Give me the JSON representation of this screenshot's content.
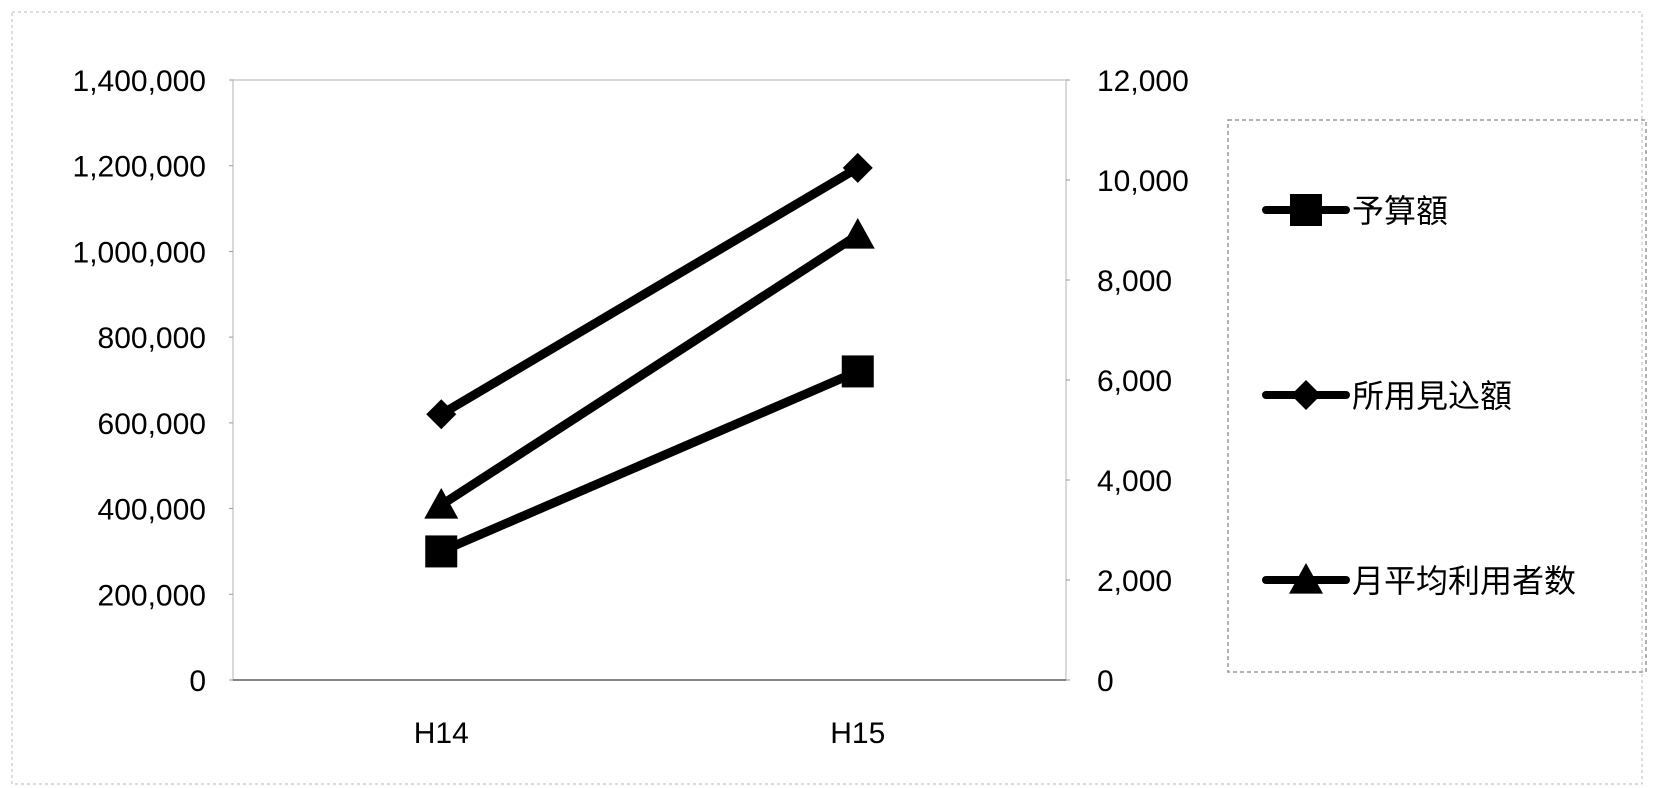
{
  "chart_data": {
    "type": "line",
    "categories": [
      "H14",
      "H15"
    ],
    "y_left": {
      "min": 0,
      "max": 1400000,
      "step": 200000,
      "tick_labels": [
        "0",
        "200,000",
        "400,000",
        "600,000",
        "800,000",
        "1,000,000",
        "1,200,000",
        "1,400,000"
      ]
    },
    "y_right": {
      "min": 0,
      "max": 12000,
      "step": 2000,
      "tick_labels": [
        "0",
        "2,000",
        "4,000",
        "6,000",
        "8,000",
        "10,000",
        "12,000"
      ]
    },
    "series": [
      {
        "name": "予算額",
        "axis": "left",
        "marker": "square",
        "values": [
          300000,
          720000
        ]
      },
      {
        "name": "所用見込額",
        "axis": "left",
        "marker": "diamond",
        "values": [
          620000,
          1195000
        ]
      },
      {
        "name": "月平均利用者数",
        "axis": "right",
        "marker": "triangle",
        "values": [
          3500,
          8900
        ]
      }
    ],
    "legend_position": "right",
    "line_color": "#000000",
    "grid": false
  }
}
